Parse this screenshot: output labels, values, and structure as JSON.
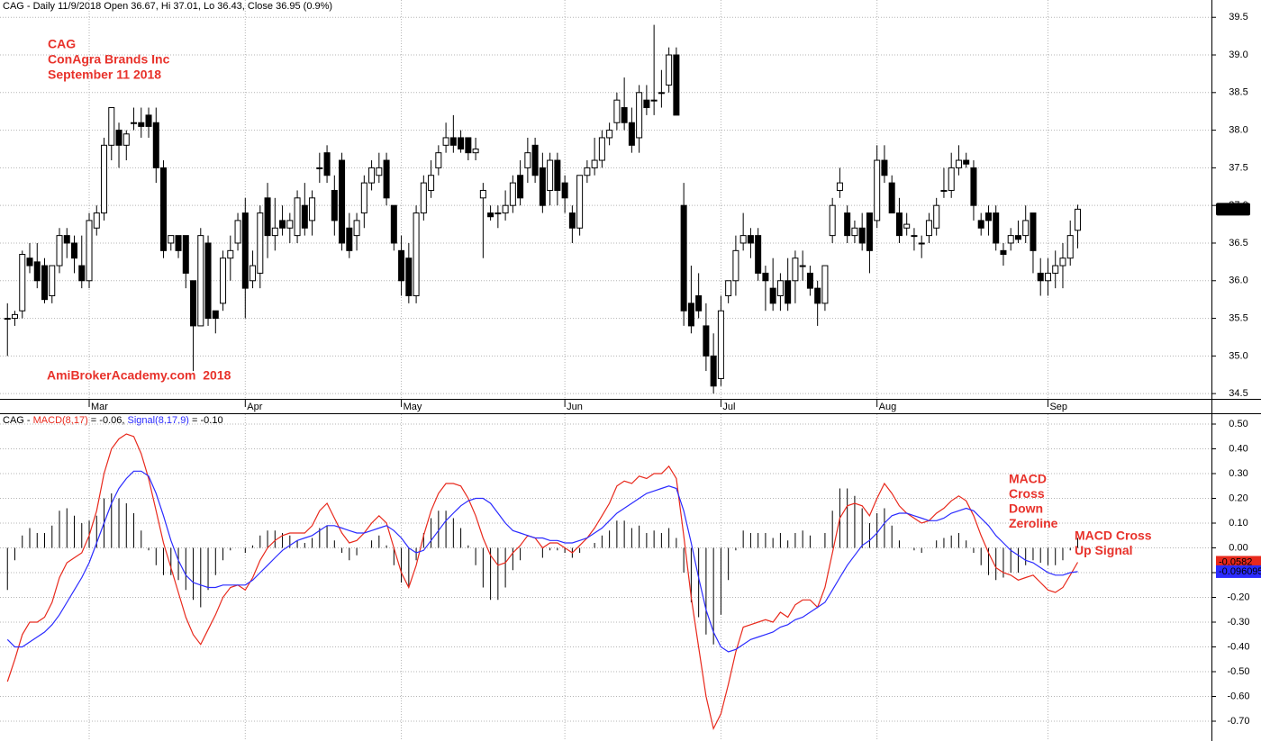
{
  "chart_data": [
    {
      "type": "candlestick",
      "title": "CAG - Daily 11/9/2018 Open 36.67, Hi 37.01, Lo 36.43, Close 36.95 (0.9%)",
      "annotations": [
        "CAG",
        "ConAgra Brands Inc",
        "September 11 2018"
      ],
      "watermark": "AmiBrokerAcademy.com  2018",
      "open": [
        35.5,
        35.5,
        35.6,
        36.3,
        36.25,
        36.2,
        35.8,
        36.2,
        36.6,
        36.5,
        36.2,
        36.0,
        36.7,
        36.9,
        37.8,
        38.0,
        37.8,
        38.1,
        38.1,
        38.2,
        38.1,
        37.5,
        36.5,
        36.6,
        36.6,
        36.0,
        35.4,
        36.5,
        35.6,
        35.7,
        36.3,
        36.5,
        36.9,
        36.0,
        36.1,
        37.1,
        36.6,
        36.8,
        36.7,
        36.6,
        37.0,
        36.8,
        37.5,
        37.7,
        37.2,
        37.6,
        36.7,
        36.6,
        36.9,
        37.3,
        37.4,
        37.6,
        37.0,
        36.4,
        36.3,
        35.8,
        36.9,
        37.2,
        37.5,
        37.8,
        37.9,
        37.9,
        37.9,
        37.7,
        37.1,
        36.9,
        36.9,
        36.9,
        37.0,
        37.4,
        37.5,
        37.8,
        37.5,
        37.2,
        37.6,
        37.3,
        36.9,
        36.7,
        37.4,
        37.5,
        37.6,
        37.9,
        38.1,
        38.3,
        38.1,
        37.9,
        38.4,
        38.4,
        38.5,
        38.6,
        39.0,
        37.0,
        35.7,
        35.8,
        35.4,
        35.0,
        34.7,
        35.8,
        36.0,
        36.5,
        36.6,
        36.6,
        36.1,
        35.9,
        35.8,
        36.0,
        36.0,
        36.2,
        36.1,
        35.9,
        35.7,
        36.6,
        37.2,
        36.9,
        36.6,
        36.7,
        36.9,
        36.8,
        37.6,
        37.3,
        36.9,
        36.7,
        36.6,
        36.5,
        36.6,
        36.7,
        37.2,
        37.2,
        37.5,
        37.6,
        37.5,
        36.8,
        36.9,
        36.9,
        36.4,
        36.5,
        36.6,
        36.6,
        36.9,
        36.1,
        36.0,
        36.1,
        36.2,
        36.3,
        36.67
      ],
      "high": [
        35.7,
        35.6,
        36.4,
        36.5,
        36.5,
        36.3,
        36.2,
        36.7,
        36.7,
        36.6,
        36.6,
        36.9,
        37.0,
        37.9,
        38.3,
        38.1,
        38.0,
        38.3,
        38.3,
        38.3,
        38.3,
        37.6,
        36.6,
        36.6,
        36.6,
        36.0,
        36.7,
        36.6,
        35.6,
        36.4,
        36.6,
        36.9,
        37.1,
        36.4,
        37.0,
        37.3,
        37.1,
        37.0,
        36.9,
        37.2,
        37.3,
        37.2,
        37.7,
        37.8,
        37.4,
        37.7,
        36.9,
        36.9,
        37.4,
        37.6,
        37.7,
        37.7,
        37.0,
        36.6,
        36.5,
        37.0,
        37.4,
        37.6,
        37.8,
        38.1,
        38.2,
        38.0,
        37.9,
        37.9,
        37.3,
        37.0,
        37.0,
        37.2,
        37.4,
        37.6,
        37.9,
        37.9,
        37.7,
        37.7,
        37.7,
        37.4,
        37.0,
        37.4,
        37.6,
        37.9,
        38.0,
        38.1,
        38.5,
        38.7,
        38.3,
        38.6,
        38.6,
        39.4,
        38.8,
        39.1,
        39.1,
        37.3,
        36.2,
        36.1,
        35.7,
        35.3,
        35.8,
        36.0,
        36.6,
        36.9,
        36.7,
        36.7,
        36.2,
        36.3,
        36.1,
        36.3,
        36.4,
        36.4,
        36.2,
        36.0,
        36.2,
        37.1,
        37.5,
        37.0,
        36.8,
        36.9,
        36.9,
        37.8,
        37.8,
        37.4,
        37.1,
        36.9,
        36.7,
        36.6,
        36.9,
        37.1,
        37.5,
        37.7,
        37.8,
        37.7,
        37.6,
        36.9,
        37.0,
        37.0,
        36.5,
        36.7,
        36.8,
        37.0,
        36.9,
        36.3,
        36.3,
        36.4,
        36.5,
        36.8,
        37.01
      ],
      "low": [
        35.0,
        35.4,
        35.5,
        36.1,
        35.9,
        35.7,
        35.7,
        36.1,
        36.3,
        36.1,
        35.9,
        35.9,
        36.6,
        36.8,
        37.6,
        37.5,
        37.6,
        38.0,
        37.9,
        37.9,
        37.3,
        36.3,
        36.4,
        36.3,
        35.9,
        34.8,
        35.4,
        35.4,
        35.3,
        35.6,
        36.0,
        36.4,
        35.5,
        35.9,
        35.9,
        36.3,
        36.4,
        36.6,
        36.5,
        36.5,
        36.6,
        36.6,
        37.3,
        37.3,
        36.6,
        36.4,
        36.3,
        36.4,
        36.7,
        37.2,
        37.3,
        37.0,
        36.4,
        35.8,
        35.7,
        35.7,
        36.8,
        37.1,
        37.4,
        37.7,
        37.7,
        37.7,
        37.6,
        37.6,
        36.3,
        36.8,
        36.7,
        36.8,
        36.9,
        37.0,
        37.3,
        37.3,
        36.9,
        37.0,
        37.0,
        36.9,
        36.5,
        36.6,
        37.3,
        37.4,
        37.5,
        37.8,
        38.0,
        38.0,
        37.7,
        37.7,
        38.2,
        38.2,
        38.3,
        38.5,
        38.2,
        35.4,
        35.3,
        35.5,
        34.8,
        34.5,
        34.6,
        35.7,
        35.8,
        36.4,
        36.3,
        36.0,
        35.6,
        35.6,
        35.6,
        35.6,
        35.7,
        36.0,
        35.8,
        35.4,
        35.6,
        36.5,
        37.1,
        36.5,
        36.5,
        36.4,
        36.1,
        36.7,
        37.3,
        36.9,
        36.5,
        36.6,
        36.4,
        36.3,
        36.5,
        36.6,
        37.1,
        37.1,
        37.4,
        37.5,
        36.8,
        36.6,
        36.6,
        36.4,
        36.2,
        36.4,
        36.5,
        36.5,
        36.1,
        35.8,
        35.8,
        35.9,
        35.9,
        36.2,
        36.43
      ],
      "close": [
        35.5,
        35.55,
        36.35,
        36.2,
        36.0,
        35.75,
        36.2,
        36.6,
        36.5,
        36.3,
        36.0,
        36.8,
        36.9,
        37.8,
        38.3,
        37.8,
        37.95,
        38.1,
        38.05,
        38.05,
        37.5,
        36.4,
        36.6,
        36.4,
        36.1,
        35.4,
        36.6,
        35.5,
        35.5,
        36.3,
        36.4,
        36.8,
        35.9,
        36.2,
        36.9,
        36.6,
        36.7,
        36.7,
        36.8,
        37.1,
        36.7,
        37.1,
        37.5,
        37.4,
        36.8,
        36.5,
        36.4,
        36.8,
        37.3,
        37.5,
        37.5,
        37.1,
        36.5,
        36.0,
        35.8,
        36.9,
        37.3,
        37.4,
        37.7,
        37.9,
        37.8,
        37.75,
        37.7,
        37.75,
        37.2,
        36.85,
        36.9,
        37.0,
        37.3,
        37.1,
        37.7,
        37.4,
        37.0,
        37.6,
        37.2,
        37.1,
        36.7,
        37.4,
        37.5,
        37.6,
        37.9,
        38.0,
        38.4,
        38.1,
        37.8,
        38.5,
        38.3,
        38.4,
        38.5,
        39.0,
        38.2,
        35.6,
        35.4,
        35.6,
        35.0,
        34.6,
        35.6,
        36.0,
        36.4,
        36.6,
        36.5,
        36.1,
        36.0,
        35.7,
        36.0,
        35.7,
        36.3,
        36.2,
        35.9,
        35.7,
        36.2,
        37.0,
        37.3,
        36.6,
        36.7,
        36.5,
        36.4,
        37.6,
        37.4,
        36.9,
        36.6,
        36.75,
        36.6,
        36.5,
        36.8,
        37.0,
        37.2,
        37.5,
        37.6,
        37.55,
        37.0,
        36.7,
        36.8,
        36.5,
        36.35,
        36.6,
        36.55,
        36.8,
        36.4,
        36.0,
        36.1,
        36.2,
        36.3,
        36.6,
        36.95
      ],
      "last_label": "36.95",
      "up_color": "#ffffff",
      "down_color": "#000000",
      "xlim": [
        -1,
        162
      ],
      "xticks": [
        {
          "value": 11,
          "label": "Mar"
        },
        {
          "value": 32,
          "label": "Apr"
        },
        {
          "value": 53,
          "label": "May"
        },
        {
          "value": 75,
          "label": "Jun"
        },
        {
          "value": 96,
          "label": "Jul"
        },
        {
          "value": 117,
          "label": "Aug"
        },
        {
          "value": 140,
          "label": "Sep"
        }
      ],
      "ylim": [
        34.43,
        39.73
      ],
      "yticks": [
        {
          "value": 34.5,
          "label": "34.5"
        },
        {
          "value": 35,
          "label": "35.0"
        },
        {
          "value": 35.5,
          "label": "35.5"
        },
        {
          "value": 36,
          "label": "36.0"
        },
        {
          "value": 36.5,
          "label": "36.5"
        },
        {
          "value": 37,
          "label": "37.0"
        },
        {
          "value": 37.5,
          "label": "37.5"
        },
        {
          "value": 38,
          "label": "38.0"
        },
        {
          "value": 38.5,
          "label": "38.5"
        },
        {
          "value": 39,
          "label": "39.0"
        },
        {
          "value": 39.5,
          "label": "39.5"
        }
      ],
      "grid": true
    },
    {
      "type": "macd",
      "title_prefix": "CAG - ",
      "series": [
        {
          "name": "MACD(8,17)",
          "current": " = -0.06, ",
          "color": "#e8291c",
          "last_label": "-0.0582",
          "values": [
            -0.54,
            -0.45,
            -0.35,
            -0.3,
            -0.3,
            -0.28,
            -0.22,
            -0.12,
            -0.06,
            -0.04,
            -0.02,
            0.05,
            0.15,
            0.3,
            0.4,
            0.44,
            0.46,
            0.45,
            0.38,
            0.28,
            0.15,
            0.02,
            -0.08,
            -0.18,
            -0.28,
            -0.35,
            -0.39,
            -0.33,
            -0.27,
            -0.2,
            -0.16,
            -0.15,
            -0.17,
            -0.12,
            -0.05,
            0.0,
            0.03,
            0.05,
            0.06,
            0.06,
            0.06,
            0.09,
            0.15,
            0.18,
            0.12,
            0.06,
            0.02,
            0.03,
            0.06,
            0.1,
            0.13,
            0.1,
            0.0,
            -0.1,
            -0.16,
            -0.07,
            0.05,
            0.15,
            0.22,
            0.26,
            0.26,
            0.25,
            0.2,
            0.13,
            0.04,
            -0.03,
            -0.07,
            -0.06,
            -0.02,
            0.01,
            0.05,
            0.04,
            0.0,
            0.02,
            0.02,
            0.0,
            -0.02,
            0.01,
            0.04,
            0.08,
            0.13,
            0.18,
            0.25,
            0.27,
            0.26,
            0.29,
            0.28,
            0.3,
            0.3,
            0.33,
            0.28,
            0.05,
            -0.2,
            -0.4,
            -0.6,
            -0.73,
            -0.67,
            -0.55,
            -0.42,
            -0.32,
            -0.31,
            -0.3,
            -0.29,
            -0.3,
            -0.26,
            -0.28,
            -0.23,
            -0.21,
            -0.21,
            -0.24,
            -0.16,
            -0.02,
            0.12,
            0.17,
            0.18,
            0.17,
            0.13,
            0.2,
            0.26,
            0.22,
            0.17,
            0.14,
            0.12,
            0.1,
            0.11,
            0.14,
            0.16,
            0.19,
            0.21,
            0.19,
            0.13,
            0.05,
            -0.02,
            -0.08,
            -0.1,
            -0.11,
            -0.13,
            -0.12,
            -0.11,
            -0.14,
            -0.17,
            -0.18,
            -0.16,
            -0.11,
            -0.0582
          ]
        },
        {
          "name": "Signal(8,17,9)",
          "current": " = -0.10",
          "color": "#2b2bff",
          "last_label": "-0.096095",
          "values": [
            -0.37,
            -0.4,
            -0.4,
            -0.38,
            -0.36,
            -0.34,
            -0.31,
            -0.27,
            -0.22,
            -0.17,
            -0.12,
            -0.06,
            0.02,
            0.1,
            0.18,
            0.24,
            0.28,
            0.31,
            0.31,
            0.29,
            0.22,
            0.13,
            0.03,
            -0.05,
            -0.11,
            -0.14,
            -0.15,
            -0.16,
            -0.16,
            -0.15,
            -0.15,
            -0.15,
            -0.15,
            -0.13,
            -0.1,
            -0.07,
            -0.04,
            -0.01,
            0.01,
            0.03,
            0.04,
            0.05,
            0.07,
            0.09,
            0.09,
            0.08,
            0.07,
            0.06,
            0.06,
            0.07,
            0.08,
            0.09,
            0.07,
            0.04,
            0.0,
            -0.02,
            -0.01,
            0.03,
            0.07,
            0.11,
            0.14,
            0.17,
            0.19,
            0.2,
            0.2,
            0.18,
            0.14,
            0.1,
            0.07,
            0.06,
            0.05,
            0.04,
            0.04,
            0.03,
            0.03,
            0.02,
            0.02,
            0.03,
            0.04,
            0.06,
            0.08,
            0.11,
            0.14,
            0.16,
            0.18,
            0.2,
            0.22,
            0.23,
            0.24,
            0.25,
            0.24,
            0.15,
            0.02,
            -0.12,
            -0.25,
            -0.34,
            -0.4,
            -0.42,
            -0.41,
            -0.39,
            -0.37,
            -0.36,
            -0.35,
            -0.34,
            -0.32,
            -0.31,
            -0.29,
            -0.28,
            -0.26,
            -0.24,
            -0.22,
            -0.17,
            -0.12,
            -0.07,
            -0.03,
            0.01,
            0.03,
            0.06,
            0.1,
            0.13,
            0.14,
            0.14,
            0.13,
            0.12,
            0.11,
            0.11,
            0.12,
            0.14,
            0.15,
            0.16,
            0.15,
            0.12,
            0.09,
            0.05,
            0.02,
            -0.01,
            -0.03,
            -0.05,
            -0.06,
            -0.08,
            -0.1,
            -0.11,
            -0.11,
            -0.1,
            -0.096095
          ]
        }
      ],
      "histogram": [
        -0.17,
        -0.05,
        0.05,
        0.08,
        0.06,
        0.06,
        0.09,
        0.15,
        0.16,
        0.13,
        0.1,
        0.11,
        0.13,
        0.2,
        0.22,
        0.2,
        0.18,
        0.14,
        0.07,
        -0.01,
        -0.07,
        -0.11,
        -0.11,
        -0.13,
        -0.17,
        -0.21,
        -0.24,
        -0.17,
        -0.11,
        -0.05,
        -0.01,
        0.0,
        -0.02,
        0.01,
        0.05,
        0.07,
        0.07,
        0.06,
        0.05,
        0.03,
        0.02,
        0.04,
        0.08,
        0.09,
        0.03,
        -0.02,
        -0.05,
        -0.03,
        0.0,
        0.03,
        0.05,
        0.01,
        -0.07,
        -0.14,
        -0.16,
        -0.05,
        0.06,
        0.12,
        0.15,
        0.15,
        0.12,
        0.08,
        0.01,
        -0.07,
        -0.16,
        -0.21,
        -0.21,
        -0.16,
        -0.09,
        -0.05,
        0.0,
        0.0,
        -0.04,
        -0.01,
        -0.01,
        -0.02,
        -0.04,
        -0.02,
        0.0,
        0.02,
        0.05,
        0.07,
        0.11,
        0.11,
        0.08,
        0.09,
        0.06,
        0.07,
        0.06,
        0.08,
        0.04,
        -0.1,
        -0.22,
        -0.28,
        -0.35,
        -0.39,
        -0.27,
        -0.13,
        -0.01,
        0.07,
        0.06,
        0.06,
        0.06,
        0.04,
        0.06,
        0.03,
        0.06,
        0.07,
        0.05,
        0.0,
        0.06,
        0.15,
        0.24,
        0.24,
        0.21,
        0.16,
        0.1,
        0.14,
        0.16,
        0.09,
        0.03,
        0.0,
        -0.01,
        -0.02,
        0.0,
        0.03,
        0.04,
        0.05,
        0.06,
        0.03,
        -0.02,
        -0.07,
        -0.11,
        -0.13,
        -0.12,
        -0.1,
        -0.1,
        -0.07,
        -0.05,
        -0.06,
        -0.07,
        -0.07,
        -0.05,
        -0.01,
        0.04
      ],
      "annotations": [
        [
          "MACD",
          "Cross",
          "Down",
          "Zeroline"
        ],
        [
          "MACD Cross",
          "Up Signal"
        ]
      ],
      "ylim": [
        -0.78,
        0.54
      ],
      "yticks": [
        {
          "value": -0.7,
          "label": "-0.70"
        },
        {
          "value": -0.6,
          "label": "-0.60"
        },
        {
          "value": -0.5,
          "label": "-0.50"
        },
        {
          "value": -0.4,
          "label": "-0.40"
        },
        {
          "value": -0.3,
          "label": "-0.30"
        },
        {
          "value": -0.2,
          "label": "-0.20"
        },
        {
          "value": -0.1,
          "label": "-0.10"
        },
        {
          "value": 0,
          "label": "0.00"
        },
        {
          "value": 0.1,
          "label": "0.10"
        },
        {
          "value": 0.2,
          "label": "0.20"
        },
        {
          "value": 0.3,
          "label": "0.30"
        },
        {
          "value": 0.4,
          "label": "0.40"
        },
        {
          "value": 0.5,
          "label": "0.50"
        }
      ],
      "grid": true
    }
  ]
}
